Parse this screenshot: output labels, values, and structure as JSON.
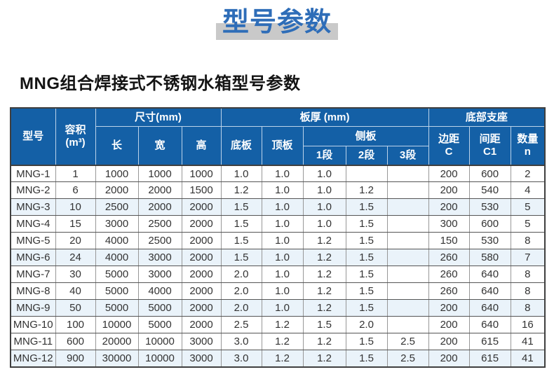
{
  "page": {
    "title": "型号参数",
    "subtitle": "MNG组合焊接式不锈钢水箱型号参数"
  },
  "colors": {
    "header_bg": "#1460a6",
    "header_divider": "#bcd3ea",
    "row_highlight": "#eaf3fa",
    "title_blue": "#2e6db8",
    "title_bar_gray": "#c9c9c9",
    "body_text": "#333333"
  },
  "table": {
    "header": {
      "model": "型号",
      "volume": [
        "容积",
        "(m³)"
      ],
      "dimensions_group": "尺寸(mm)",
      "length": "长",
      "width": "宽",
      "height": "高",
      "thickness_group": "板厚 (mm)",
      "bottom_plate": "底板",
      "top_plate": "顶板",
      "side_plate_group": "侧板",
      "seg1": "1段",
      "seg2": "2段",
      "seg3": "3段",
      "support_group": "底部支座",
      "edge_distance": [
        "边距",
        "C"
      ],
      "spacing": [
        "间距",
        "C1"
      ],
      "quantity": [
        "数量",
        "n"
      ]
    },
    "rows": [
      [
        "MNG-1",
        "1",
        "1000",
        "1000",
        "1000",
        "1.0",
        "1.0",
        "1.0",
        "",
        "",
        "200",
        "600",
        "2"
      ],
      [
        "MNG-2",
        "6",
        "2000",
        "2000",
        "1500",
        "1.2",
        "1.0",
        "1.0",
        "1.2",
        "",
        "200",
        "540",
        "4"
      ],
      [
        "MNG-3",
        "10",
        "2500",
        "2000",
        "2000",
        "1.5",
        "1.0",
        "1.0",
        "1.5",
        "",
        "200",
        "530",
        "5"
      ],
      [
        "MNG-4",
        "15",
        "3000",
        "2500",
        "2000",
        "1.5",
        "1.0",
        "1.0",
        "1.5",
        "",
        "300",
        "600",
        "5"
      ],
      [
        "MNG-5",
        "20",
        "4000",
        "2500",
        "2000",
        "1.5",
        "1.0",
        "1.2",
        "1.5",
        "",
        "150",
        "530",
        "8"
      ],
      [
        "MNG-6",
        "24",
        "4000",
        "3000",
        "2000",
        "1.5",
        "1.0",
        "1.2",
        "1.5",
        "",
        "260",
        "580",
        "7"
      ],
      [
        "MNG-7",
        "30",
        "5000",
        "3000",
        "2000",
        "2.0",
        "1.0",
        "1.2",
        "1.5",
        "",
        "260",
        "640",
        "8"
      ],
      [
        "MNG-8",
        "40",
        "5000",
        "4000",
        "2000",
        "2.0",
        "1.0",
        "1.2",
        "1.5",
        "",
        "260",
        "640",
        "8"
      ],
      [
        "MNG-9",
        "50",
        "5000",
        "5000",
        "2000",
        "2.0",
        "1.0",
        "1.2",
        "1.5",
        "",
        "200",
        "640",
        "8"
      ],
      [
        "MNG-10",
        "100",
        "10000",
        "5000",
        "2000",
        "2.5",
        "1.2",
        "1.5",
        "2.0",
        "",
        "200",
        "640",
        "16"
      ],
      [
        "MNG-11",
        "600",
        "20000",
        "10000",
        "3000",
        "3.0",
        "1.2",
        "1.2",
        "1.5",
        "2.5",
        "200",
        "615",
        "41"
      ],
      [
        "MNG-12",
        "900",
        "30000",
        "10000",
        "3000",
        "3.0",
        "1.2",
        "1.2",
        "1.5",
        "2.5",
        "200",
        "615",
        "41"
      ]
    ]
  }
}
